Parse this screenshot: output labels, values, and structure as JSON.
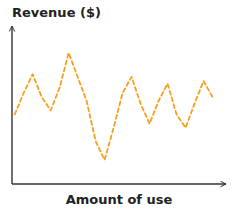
{
  "chart_data": {
    "type": "line",
    "title": "Revenue ($)",
    "xlabel": "Amount of use",
    "x": [
      0,
      1,
      2,
      3,
      4,
      5,
      6,
      7,
      8,
      9,
      10,
      11,
      12,
      13,
      14,
      15,
      16,
      17,
      18,
      19,
      20,
      21,
      22
    ],
    "values": [
      0.42,
      0.58,
      0.72,
      0.55,
      0.45,
      0.62,
      0.88,
      0.7,
      0.52,
      0.22,
      0.08,
      0.32,
      0.58,
      0.7,
      0.5,
      0.35,
      0.52,
      0.65,
      0.42,
      0.32,
      0.5,
      0.67,
      0.55
    ],
    "color": "#F5A020",
    "line_style": "dashed",
    "xlim": [
      -0.3,
      23.5
    ],
    "ylim": [
      -0.1,
      1.08
    ],
    "tick_labels": false
  }
}
